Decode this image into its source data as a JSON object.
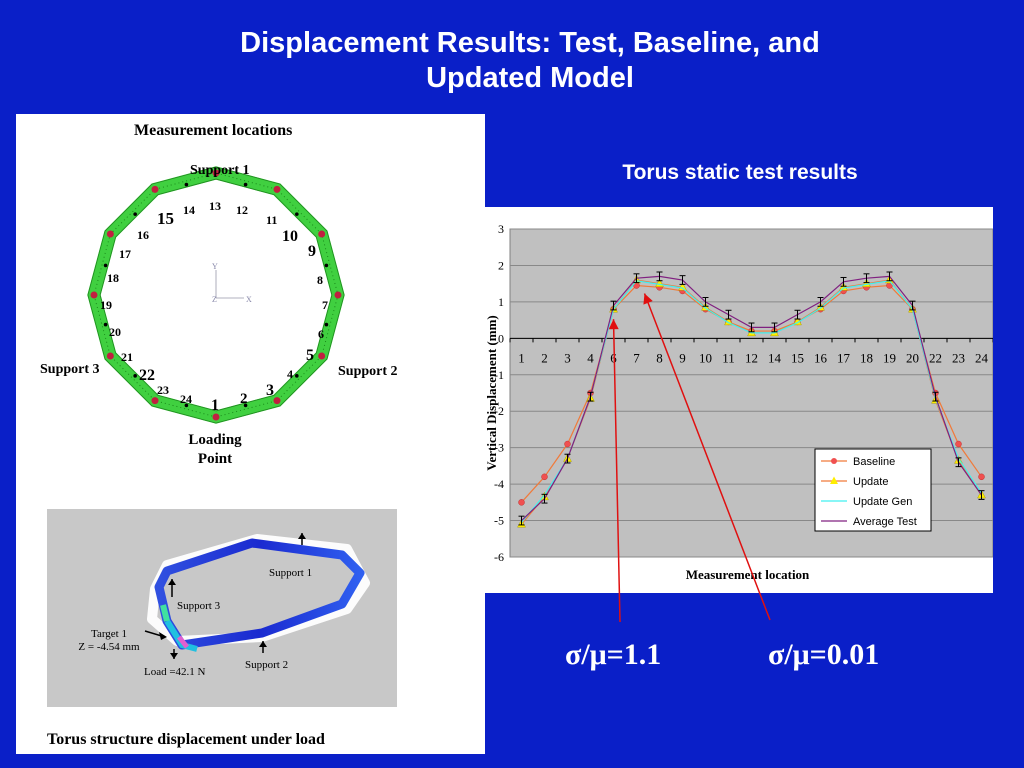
{
  "slide": {
    "title_line1": "Displacement Results: Test, Baseline, and",
    "title_line2": "Updated Model"
  },
  "measurement_figure": {
    "title": "Measurement locations",
    "support1": "Support 1",
    "support2": "Support 2",
    "support3": "Support 3",
    "loading_line1": "Loading",
    "loading_line2": "Point",
    "axis_y": "Y",
    "axis_z": "Z",
    "axis_x": "X",
    "location_labels": [
      "1",
      "2",
      "3",
      "4",
      "5",
      "6",
      "7",
      "8",
      "9",
      "10",
      "11",
      "12",
      "13",
      "14",
      "15",
      "16",
      "17",
      "18",
      "19",
      "20",
      "21",
      "22",
      "23",
      "24"
    ]
  },
  "torus_figure": {
    "caption": "Torus structure displacement under load",
    "support1": "Support 1",
    "support2": "Support 2",
    "support3": "Support 3",
    "target_line1": "Target 1",
    "target_line2": "Z = -4.54 mm",
    "load": "Load =42.1 N"
  },
  "chart_title": "Torus static test results",
  "chart_data": {
    "type": "line",
    "categories": [
      "1",
      "2",
      "3",
      "4",
      "6",
      "7",
      "8",
      "9",
      "10",
      "11",
      "12",
      "14",
      "15",
      "16",
      "17",
      "18",
      "19",
      "20",
      "22",
      "23",
      "24"
    ],
    "xlabel": "Measurement location",
    "ylabel": "Vertical Displacement (mm)",
    "ylim": [
      -6,
      3
    ],
    "yticks": [
      "3",
      "2",
      "1",
      "0",
      "-1",
      "-2",
      "-3",
      "-4",
      "-5",
      "-6"
    ],
    "grid": true,
    "legend_position": "bottom-right",
    "series": [
      {
        "name": "Baseline",
        "color": "#f07a3a",
        "marker": "circle",
        "markerColor": "#f05050",
        "values": [
          -4.5,
          -3.8,
          -2.9,
          -1.5,
          0.8,
          1.45,
          1.4,
          1.3,
          0.8,
          0.45,
          0.2,
          0.2,
          0.45,
          0.8,
          1.3,
          1.4,
          1.45,
          0.8,
          -1.5,
          -2.9,
          -3.8
        ]
      },
      {
        "name": "Update",
        "color": "#f07a3a",
        "marker": "triangle",
        "markerColor": "#ffee00",
        "values": [
          -5.1,
          -4.35,
          -3.3,
          -1.65,
          0.8,
          1.6,
          1.5,
          1.4,
          0.85,
          0.45,
          0.15,
          0.15,
          0.45,
          0.85,
          1.4,
          1.5,
          1.6,
          0.8,
          -1.7,
          -3.35,
          -4.3
        ]
      },
      {
        "name": "Update Gen",
        "color": "#40f0f0",
        "marker": "none",
        "values": [
          -5.05,
          -4.3,
          -3.3,
          -1.6,
          0.8,
          1.58,
          1.48,
          1.38,
          0.83,
          0.43,
          0.15,
          0.15,
          0.43,
          0.83,
          1.38,
          1.48,
          1.58,
          0.8,
          -1.65,
          -3.3,
          -4.25
        ]
      },
      {
        "name": "Average Test",
        "color": "#802080",
        "marker": "errorbar",
        "values": [
          -5.0,
          -4.4,
          -3.3,
          -1.6,
          0.9,
          1.65,
          1.7,
          1.6,
          1.0,
          0.65,
          0.3,
          0.3,
          0.65,
          1.0,
          1.55,
          1.65,
          1.7,
          0.9,
          -1.6,
          -3.4,
          -4.3
        ]
      }
    ]
  },
  "annotations": {
    "sigma1": "σ/μ=1.1",
    "sigma2": "σ/μ=0.01",
    "arrow_color": "#e01010"
  }
}
